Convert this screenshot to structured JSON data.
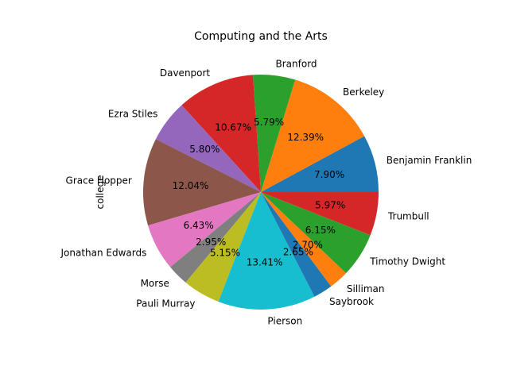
{
  "chart_data": {
    "type": "pie",
    "title": "Computing and the Arts",
    "ylabel": "college",
    "start_angle_deg": 0,
    "direction": "counterclockwise",
    "slices": [
      {
        "label": "Benjamin Franklin",
        "value": 7.9,
        "pct_text": "7.90%",
        "color": "#1f77b4"
      },
      {
        "label": "Berkeley",
        "value": 12.39,
        "pct_text": "12.39%",
        "color": "#ff7f0e"
      },
      {
        "label": "Branford",
        "value": 5.79,
        "pct_text": "5.79%",
        "color": "#2ca02c"
      },
      {
        "label": "Davenport",
        "value": 10.67,
        "pct_text": "10.67%",
        "color": "#d62728"
      },
      {
        "label": "Ezra Stiles",
        "value": 5.8,
        "pct_text": "5.80%",
        "color": "#9467bd"
      },
      {
        "label": "Grace Hopper",
        "value": 12.04,
        "pct_text": "12.04%",
        "color": "#8c564b"
      },
      {
        "label": "Jonathan Edwards",
        "value": 6.43,
        "pct_text": "6.43%",
        "color": "#e377c2"
      },
      {
        "label": "Morse",
        "value": 2.95,
        "pct_text": "2.95%",
        "color": "#7f7f7f"
      },
      {
        "label": "Pauli Murray",
        "value": 5.15,
        "pct_text": "5.15%",
        "color": "#bcbd22"
      },
      {
        "label": "Pierson",
        "value": 13.41,
        "pct_text": "13.41%",
        "color": "#17becf"
      },
      {
        "label": "Saybrook",
        "value": 2.65,
        "pct_text": "2.65%",
        "color": "#1f77b4"
      },
      {
        "label": "Silliman",
        "value": 2.7,
        "pct_text": "2.70%",
        "color": "#ff7f0e"
      },
      {
        "label": "Timothy Dwight",
        "value": 6.15,
        "pct_text": "6.15%",
        "color": "#2ca02c"
      },
      {
        "label": "Trumbull",
        "value": 5.97,
        "pct_text": "5.97%",
        "color": "#d62728"
      }
    ]
  }
}
